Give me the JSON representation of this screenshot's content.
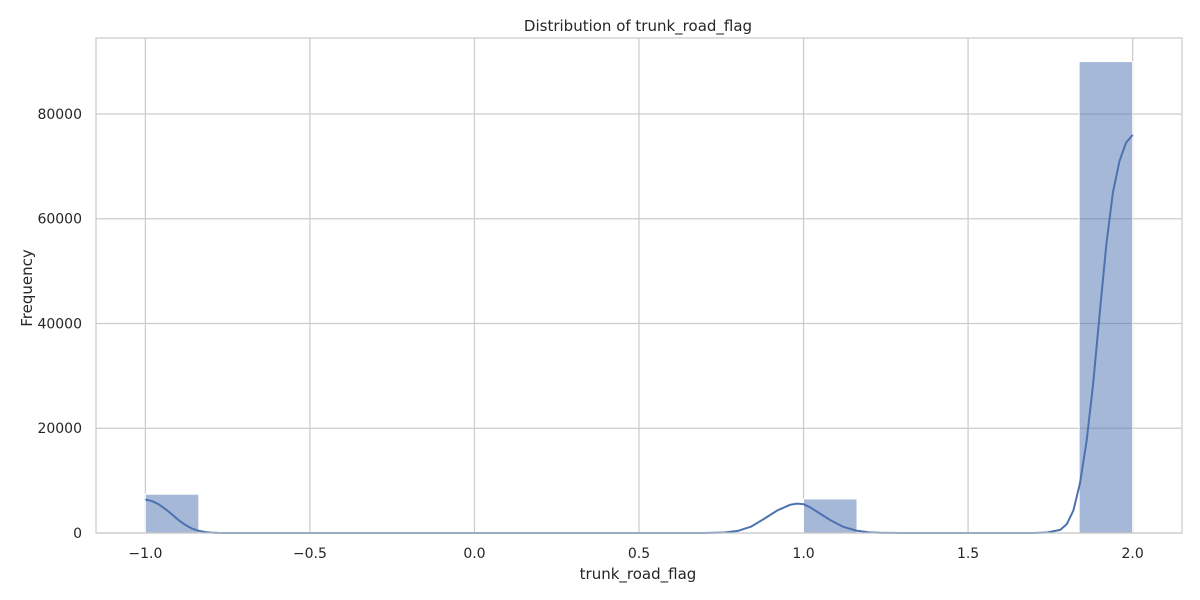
{
  "chart_data": {
    "type": "bar",
    "title": "Distribution of trunk_road_flag",
    "xlabel": "trunk_road_flag",
    "ylabel": "Frequency",
    "xlim": [
      -1.15,
      2.15
    ],
    "ylim": [
      0,
      94500
    ],
    "xticks": [
      -1.0,
      -0.5,
      0.0,
      0.5,
      1.0,
      1.5,
      2.0
    ],
    "xtick_labels": [
      "−1.0",
      "−0.5",
      "0.0",
      "0.5",
      "1.0",
      "1.5",
      "2.0"
    ],
    "yticks": [
      0,
      20000,
      40000,
      60000,
      80000
    ],
    "ytick_labels": [
      "0",
      "20000",
      "40000",
      "60000",
      "80000"
    ],
    "grid": true,
    "bar_color": "#4c72b0",
    "bar_opacity": 0.5,
    "kde_color": "#4c72b0",
    "bins": [
      {
        "x0": -1.0,
        "x1": -0.8375,
        "count": 7400
      },
      {
        "x0": 1.0,
        "x1": 1.1625,
        "count": 6500
      },
      {
        "x0": 1.8375,
        "x1": 2.0,
        "count": 90000
      }
    ],
    "kde": {
      "x": [
        -1.0,
        -0.98,
        -0.96,
        -0.94,
        -0.92,
        -0.9,
        -0.88,
        -0.86,
        -0.84,
        -0.82,
        -0.8,
        -0.78,
        -0.76,
        -0.74,
        -0.72,
        -0.7,
        0.7,
        0.76,
        0.8,
        0.84,
        0.88,
        0.92,
        0.96,
        0.98,
        1.0,
        1.02,
        1.04,
        1.08,
        1.12,
        1.16,
        1.2,
        1.24,
        1.3,
        1.7,
        1.74,
        1.78,
        1.8,
        1.82,
        1.84,
        1.86,
        1.88,
        1.9,
        1.92,
        1.94,
        1.96,
        1.98,
        2.0
      ],
      "y": [
        6400,
        6100,
        5500,
        4600,
        3600,
        2500,
        1600,
        900,
        450,
        200,
        80,
        30,
        10,
        0,
        0,
        0,
        0,
        100,
        400,
        1200,
        2700,
        4300,
        5400,
        5600,
        5500,
        4900,
        4100,
        2500,
        1200,
        450,
        130,
        30,
        0,
        0,
        100,
        600,
        1700,
        4300,
        9500,
        17500,
        28500,
        42000,
        55000,
        65000,
        71000,
        74500,
        76000
      ]
    }
  }
}
